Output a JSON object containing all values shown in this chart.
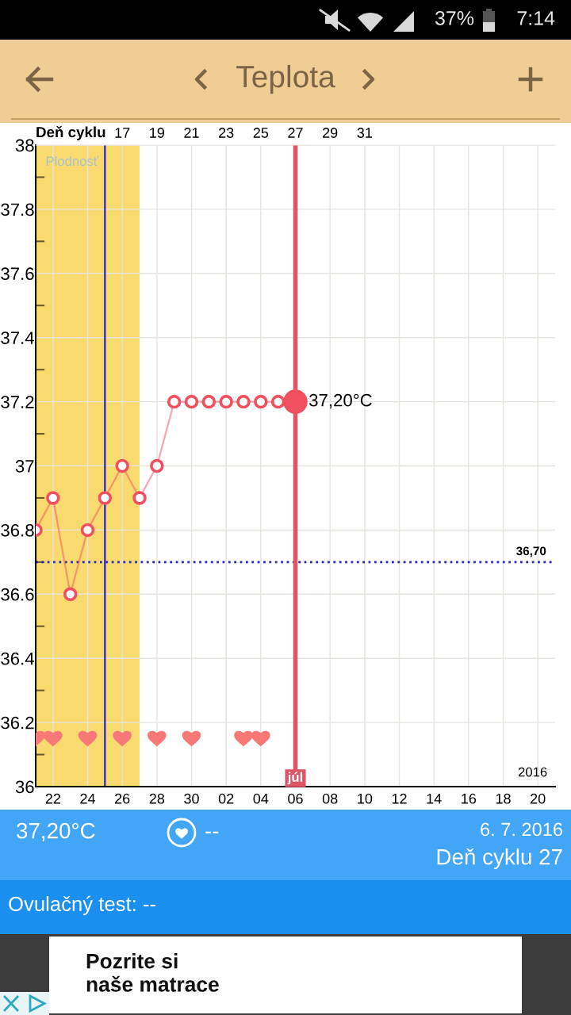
{
  "chart_data": {
    "type": "line",
    "title": "Teplota",
    "x2label": "Deň cyklu",
    "xlim": [
      "2016-06-21",
      "2016-07-21"
    ],
    "xticks": [
      {
        "value": "2016-06-22",
        "label": "22"
      },
      {
        "value": "2016-06-24",
        "label": "24"
      },
      {
        "value": "2016-06-26",
        "label": "26"
      },
      {
        "value": "2016-06-28",
        "label": "28"
      },
      {
        "value": "2016-06-30",
        "label": "30"
      },
      {
        "value": "2016-07-02",
        "label": "02"
      },
      {
        "value": "2016-07-04",
        "label": "04"
      },
      {
        "value": "2016-07-06",
        "label": "06"
      },
      {
        "value": "2016-07-08",
        "label": "08"
      },
      {
        "value": "2016-07-10",
        "label": "10"
      },
      {
        "value": "2016-07-12",
        "label": "12"
      },
      {
        "value": "2016-07-14",
        "label": "14"
      },
      {
        "value": "2016-07-16",
        "label": "16"
      },
      {
        "value": "2016-07-18",
        "label": "18"
      },
      {
        "value": "2016-07-20",
        "label": "20"
      }
    ],
    "x2lim": [
      12,
      42
    ],
    "x2ticks": [
      17,
      19,
      21,
      23,
      25,
      27,
      29,
      31
    ],
    "ylim": [
      36,
      38
    ],
    "yticks": [
      36,
      {
        "value": 36.1,
        "label": null
      },
      36.2,
      {
        "value": 36.3,
        "label": null
      },
      36.4,
      {
        "value": 36.5,
        "label": null
      },
      36.6,
      {
        "value": 36.7,
        "label": null
      },
      36.8,
      {
        "value": 36.9,
        "label": null
      },
      37,
      {
        "value": 37.1,
        "label": null
      },
      37.2,
      {
        "value": 37.3,
        "label": null
      },
      37.4,
      {
        "value": 37.5,
        "label": null
      },
      37.6,
      {
        "value": 37.7,
        "label": null
      },
      37.8,
      {
        "value": 37.9,
        "label": null
      },
      38
    ],
    "grid": true,
    "series": [
      {
        "color": "#f0505f",
        "marker": "circle",
        "x": [
          "2016-06-21",
          "2016-06-22",
          "2016-06-23",
          "2016-06-24",
          "2016-06-25",
          "2016-06-26",
          "2016-06-27",
          "2016-06-28",
          "2016-06-29",
          "2016-06-30",
          "2016-07-01",
          "2016-07-02",
          "2016-07-03",
          "2016-07-04",
          "2016-07-05",
          "2016-07-06"
        ],
        "values": [
          36.8,
          36.9,
          36.6,
          36.8,
          36.9,
          37,
          36.9,
          37,
          37.2,
          37.2,
          37.2,
          37.2,
          37.2,
          37.2,
          37.2,
          37.2
        ],
        "value_labels": [
          null,
          null,
          null,
          null,
          null,
          null,
          null,
          null,
          null,
          null,
          null,
          null,
          null,
          null,
          null,
          "37,20°C"
        ]
      },
      {
        "type": "scatter",
        "color": "#f87878",
        "x": [
          "2016-06-21",
          "2016-06-22",
          "2016-06-24",
          "2016-06-26",
          "2016-06-28",
          "2016-06-30",
          "2016-07-03",
          "2016-07-04"
        ],
        "values": [
          36.15,
          36.15,
          36.15,
          36.15,
          36.15,
          36.15,
          36.15,
          36.15
        ]
      }
    ],
    "bands": [
      {
        "axis": "x",
        "from": "2016-06-21",
        "to": "2016-06-27",
        "label": "Plodnosť",
        "color": "#f9da6e"
      }
    ],
    "ref_lines": [
      {
        "axis": "x",
        "value": "2016-06-25",
        "color": "#2424c8"
      },
      {
        "axis": "x",
        "value": "2016-07-06",
        "label": "júl",
        "color": "#e05566"
      },
      {
        "axis": "y",
        "value": 36.7,
        "label": "36,70",
        "color": "#2424c8",
        "line_style": "dotted"
      }
    ],
    "annotations": [
      "2016",
      "37%",
      "7:14",
      "37,20°C",
      "--",
      "6. 7. 2016",
      "Deň cyklu 27",
      "Ovulačný test: --",
      "Pozrite si\nnaše matrace"
    ]
  }
}
